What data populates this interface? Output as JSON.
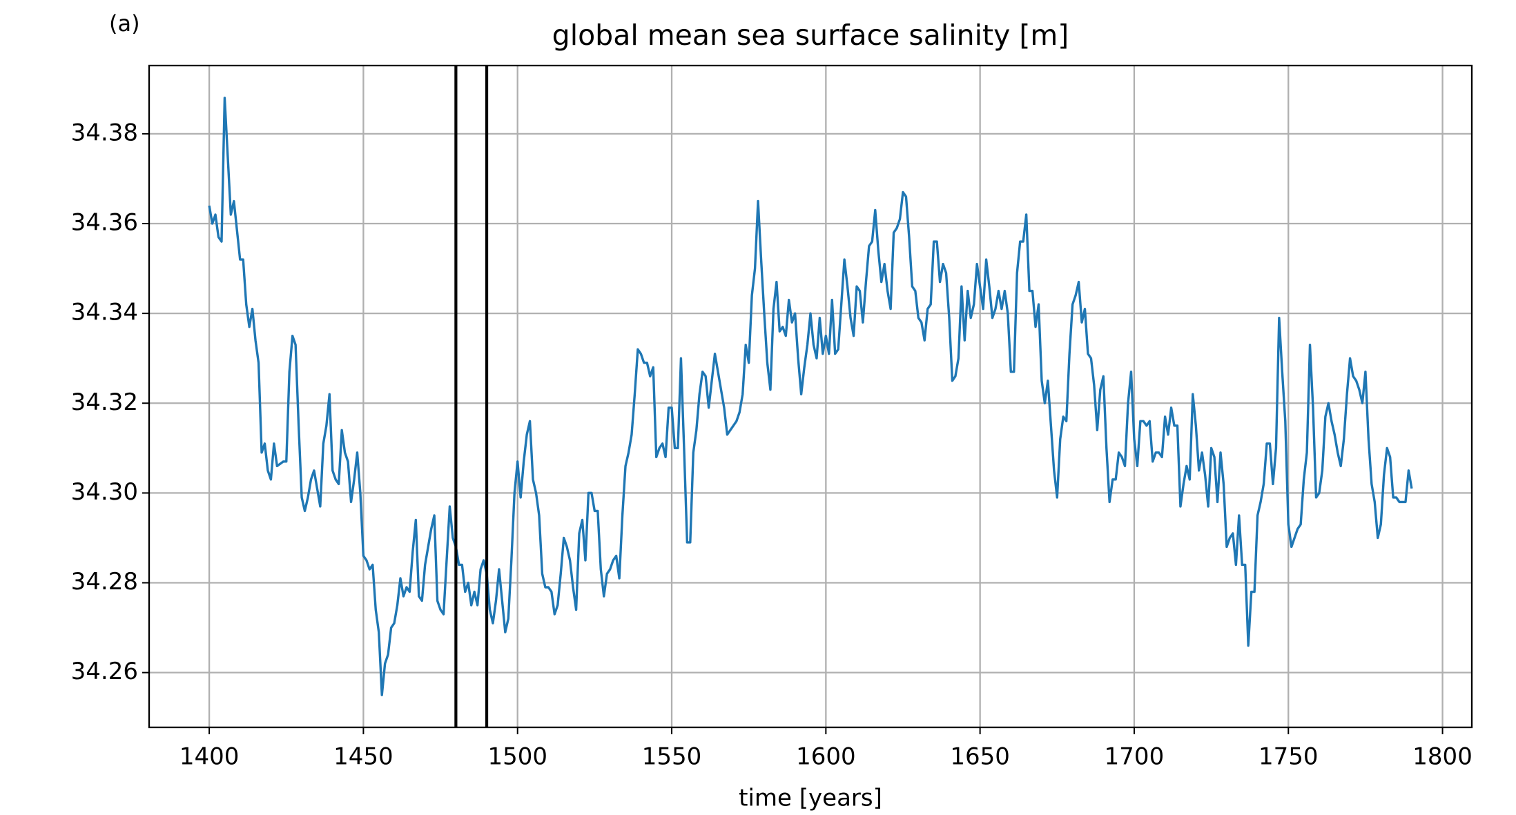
{
  "chart_data": {
    "type": "line",
    "panel_label": "(a)",
    "title": "global mean sea surface salinity [m]",
    "xlabel": "time [years]",
    "color": "#1f77b4",
    "grid": true,
    "vlines": [
      1480,
      1490
    ],
    "xlim": [
      1380.5,
      1809.5
    ],
    "xticks": [
      1400,
      1450,
      1500,
      1550,
      1600,
      1650,
      1700,
      1750,
      1800
    ],
    "ylim": [
      34.2478,
      34.3952
    ],
    "yticks": [
      {
        "value": 34.26,
        "label": "34.26"
      },
      {
        "value": 34.28,
        "label": "34.28"
      },
      {
        "value": 34.3,
        "label": "34.30"
      },
      {
        "value": 34.32,
        "label": "34.32"
      },
      {
        "value": 34.34,
        "label": "34.34"
      },
      {
        "value": 34.36,
        "label": "34.36"
      },
      {
        "value": 34.38,
        "label": "34.38"
      }
    ],
    "x": [
      1400,
      1401,
      1402,
      1403,
      1404,
      1405,
      1406,
      1407,
      1408,
      1410,
      1411,
      1412,
      1413,
      1414,
      1415,
      1416,
      1417,
      1418,
      1419,
      1420,
      1421,
      1422,
      1424,
      1425,
      1426,
      1427,
      1428,
      1429,
      1430,
      1431,
      1432,
      1433,
      1434,
      1435,
      1436,
      1437,
      1438,
      1439,
      1440,
      1441,
      1442,
      1443,
      1444,
      1445,
      1446,
      1447,
      1448,
      1449,
      1450,
      1451,
      1452,
      1453,
      1454,
      1455,
      1456,
      1457,
      1458,
      1459,
      1460,
      1461,
      1462,
      1463,
      1464,
      1465,
      1466,
      1467,
      1468,
      1469,
      1470,
      1471,
      1472,
      1473,
      1474,
      1475,
      1476,
      1478,
      1479,
      1480,
      1481,
      1482,
      1483,
      1484,
      1485,
      1486,
      1487,
      1488,
      1489,
      1490,
      1491,
      1492,
      1493,
      1494,
      1495,
      1496,
      1497,
      1498,
      1499,
      1500,
      1501,
      1502,
      1503,
      1504,
      1505,
      1506,
      1507,
      1508,
      1509,
      1510,
      1511,
      1512,
      1513,
      1514,
      1515,
      1516,
      1517,
      1518,
      1519,
      1520,
      1521,
      1522,
      1523,
      1524,
      1525,
      1526,
      1527,
      1528,
      1529,
      1530,
      1531,
      1532,
      1533,
      1534,
      1535,
      1536,
      1537,
      1538,
      1539,
      1540,
      1541,
      1542,
      1543,
      1544,
      1545,
      1546,
      1547,
      1548,
      1549,
      1550,
      1551,
      1552,
      1553,
      1554,
      1555,
      1556,
      1557,
      1558,
      1559,
      1560,
      1561,
      1562,
      1563,
      1564,
      1565,
      1566,
      1567,
      1568,
      1569,
      1570,
      1571,
      1572,
      1573,
      1574,
      1575,
      1576,
      1577,
      1578,
      1579,
      1580,
      1581,
      1582,
      1583,
      1584,
      1585,
      1586,
      1587,
      1588,
      1589,
      1590,
      1591,
      1592,
      1593,
      1594,
      1595,
      1596,
      1597,
      1598,
      1599,
      1600,
      1601,
      1602,
      1603,
      1604,
      1605,
      1606,
      1607,
      1608,
      1609,
      1610,
      1611,
      1612,
      1613,
      1614,
      1615,
      1616,
      1617,
      1618,
      1619,
      1620,
      1621,
      1622,
      1623,
      1624,
      1625,
      1626,
      1627,
      1628,
      1629,
      1630,
      1631,
      1632,
      1633,
      1634,
      1635,
      1636,
      1637,
      1638,
      1639,
      1640,
      1641,
      1642,
      1643,
      1644,
      1645,
      1646,
      1647,
      1648,
      1649,
      1650,
      1651,
      1652,
      1653,
      1654,
      1655,
      1656,
      1657,
      1658,
      1659,
      1660,
      1661,
      1662,
      1663,
      1664,
      1665,
      1666,
      1667,
      1668,
      1669,
      1670,
      1671,
      1672,
      1673,
      1674,
      1675,
      1676,
      1677,
      1678,
      1679,
      1680,
      1681,
      1682,
      1683,
      1684,
      1685,
      1686,
      1687,
      1688,
      1689,
      1690,
      1691,
      1692,
      1693,
      1694,
      1695,
      1696,
      1697,
      1698,
      1699,
      1700,
      1701,
      1702,
      1703,
      1704,
      1705,
      1706,
      1707,
      1708,
      1709,
      1710,
      1711,
      1712,
      1713,
      1714,
      1715,
      1716,
      1717,
      1718,
      1719,
      1720,
      1721,
      1722,
      1723,
      1724,
      1725,
      1726,
      1727,
      1728,
      1729,
      1730,
      1731,
      1732,
      1733,
      1734,
      1735,
      1736,
      1737,
      1738,
      1739,
      1740,
      1741,
      1742,
      1743,
      1744,
      1745,
      1746,
      1747,
      1748,
      1749,
      1750,
      1751,
      1752,
      1753,
      1754,
      1755,
      1756,
      1757,
      1758,
      1759,
      1760,
      1761,
      1762,
      1763,
      1764,
      1765,
      1766,
      1767,
      1768,
      1769,
      1770,
      1771,
      1772,
      1773,
      1774,
      1775,
      1776,
      1777,
      1778,
      1779,
      1780,
      1781,
      1782,
      1783,
      1784,
      1785,
      1786,
      1787,
      1788,
      1789,
      1790
    ],
    "values": [
      34.364,
      34.36,
      34.362,
      34.357,
      34.356,
      34.388,
      34.375,
      34.362,
      34.365,
      34.352,
      34.352,
      34.342,
      34.337,
      34.341,
      34.334,
      34.329,
      34.309,
      34.311,
      34.305,
      34.303,
      34.311,
      34.306,
      34.307,
      34.307,
      34.327,
      34.335,
      34.333,
      34.315,
      34.299,
      34.296,
      34.299,
      34.303,
      34.305,
      34.301,
      34.297,
      34.311,
      34.315,
      34.322,
      34.305,
      34.303,
      34.302,
      34.314,
      34.309,
      34.307,
      34.298,
      34.303,
      34.309,
      34.3,
      34.286,
      34.285,
      34.283,
      34.284,
      34.274,
      34.269,
      34.255,
      34.262,
      34.264,
      34.27,
      34.271,
      34.275,
      34.281,
      34.277,
      34.279,
      34.278,
      34.287,
      34.294,
      34.277,
      34.276,
      34.284,
      34.288,
      34.292,
      34.295,
      34.276,
      34.274,
      34.273,
      34.297,
      34.29,
      34.288,
      34.284,
      34.284,
      34.278,
      34.28,
      34.275,
      34.278,
      34.275,
      34.283,
      34.285,
      34.282,
      34.274,
      34.271,
      34.276,
      34.283,
      34.276,
      34.269,
      34.272,
      34.285,
      34.3,
      34.307,
      34.299,
      34.307,
      34.313,
      34.316,
      34.303,
      34.3,
      34.295,
      34.282,
      34.279,
      34.279,
      34.278,
      34.273,
      34.275,
      34.282,
      34.29,
      34.288,
      34.285,
      34.279,
      34.274,
      34.291,
      34.294,
      34.285,
      34.3,
      34.3,
      34.296,
      34.296,
      34.283,
      34.277,
      34.282,
      34.283,
      34.285,
      34.286,
      34.281,
      34.295,
      34.306,
      34.309,
      34.313,
      34.322,
      34.332,
      34.331,
      34.329,
      34.329,
      34.326,
      34.328,
      34.308,
      34.31,
      34.311,
      34.308,
      34.319,
      34.319,
      34.31,
      34.31,
      34.33,
      34.31,
      34.289,
      34.289,
      34.309,
      34.314,
      34.322,
      34.327,
      34.326,
      34.319,
      34.325,
      34.331,
      34.327,
      34.323,
      34.319,
      34.313,
      34.314,
      34.315,
      34.316,
      34.318,
      34.322,
      34.333,
      34.329,
      34.344,
      34.35,
      34.365,
      34.352,
      34.34,
      34.329,
      34.323,
      34.341,
      34.347,
      34.336,
      34.337,
      34.335,
      34.343,
      34.338,
      34.34,
      34.33,
      34.322,
      34.328,
      34.333,
      34.34,
      34.333,
      34.33,
      34.339,
      34.331,
      34.335,
      34.331,
      34.343,
      34.331,
      34.332,
      34.342,
      34.352,
      34.346,
      34.339,
      34.335,
      34.346,
      34.345,
      34.338,
      34.347,
      34.355,
      34.356,
      34.363,
      34.354,
      34.347,
      34.351,
      34.345,
      34.341,
      34.358,
      34.359,
      34.361,
      34.367,
      34.366,
      34.357,
      34.346,
      34.345,
      34.339,
      34.338,
      34.334,
      34.341,
      34.342,
      34.356,
      34.356,
      34.347,
      34.351,
      34.349,
      34.339,
      34.325,
      34.326,
      34.33,
      34.346,
      34.334,
      34.345,
      34.339,
      34.342,
      34.351,
      34.346,
      34.341,
      34.352,
      34.346,
      34.339,
      34.341,
      34.345,
      34.341,
      34.345,
      34.34,
      34.327,
      34.327,
      34.349,
      34.356,
      34.356,
      34.362,
      34.345,
      34.345,
      34.337,
      34.342,
      34.325,
      34.32,
      34.325,
      34.315,
      34.305,
      34.299,
      34.312,
      34.317,
      34.316,
      34.331,
      34.342,
      34.344,
      34.347,
      34.338,
      34.341,
      34.331,
      34.33,
      34.324,
      34.314,
      34.323,
      34.326,
      34.31,
      34.298,
      34.303,
      34.303,
      34.309,
      34.308,
      34.306,
      34.32,
      34.327,
      34.312,
      34.306,
      34.316,
      34.316,
      34.315,
      34.316,
      34.307,
      34.309,
      34.309,
      34.308,
      34.317,
      34.313,
      34.319,
      34.315,
      34.315,
      34.297,
      34.302,
      34.306,
      34.303,
      34.322,
      34.315,
      34.305,
      34.309,
      34.304,
      34.297,
      34.31,
      34.308,
      34.298,
      34.309,
      34.302,
      34.288,
      34.29,
      34.291,
      34.284,
      34.295,
      34.284,
      34.284,
      34.266,
      34.278,
      34.278,
      34.295,
      34.298,
      34.302,
      34.311,
      34.311,
      34.302,
      34.31,
      34.339,
      34.327,
      34.316,
      34.293,
      34.288,
      34.29,
      34.292,
      34.293,
      34.303,
      34.309,
      34.333,
      34.319,
      34.299,
      34.3,
      34.305,
      34.317,
      34.32,
      34.316,
      34.313,
      34.309,
      34.306,
      34.312,
      34.322,
      34.33,
      34.326,
      34.325,
      34.323,
      34.32,
      34.327,
      34.312,
      34.302,
      34.298,
      34.29,
      34.293,
      34.304,
      34.31,
      34.308,
      34.299,
      34.299,
      34.298,
      34.298,
      34.298,
      34.305,
      34.301
    ]
  }
}
